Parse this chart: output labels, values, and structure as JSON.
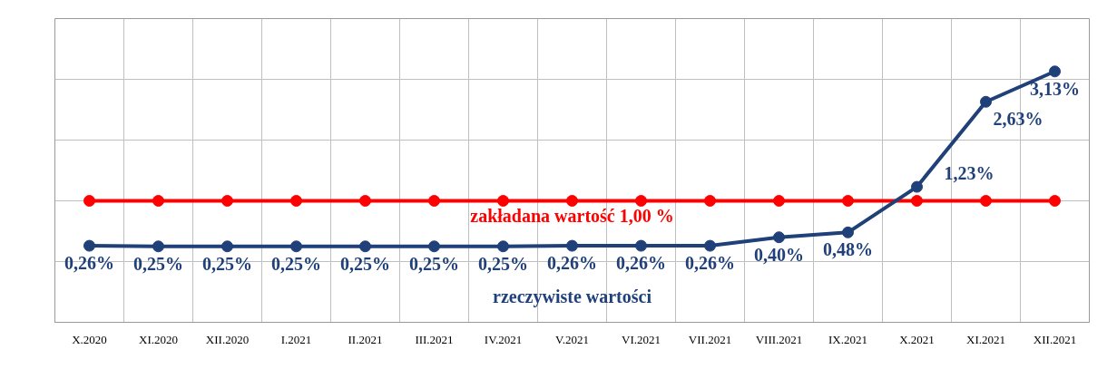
{
  "chart_data": {
    "type": "line",
    "categories": [
      "X.2020",
      "XI.2020",
      "XII.2020",
      "I.2021",
      "II.2021",
      "III.2021",
      "IV.2021",
      "V.2021",
      "VI.2021",
      "VII.2021",
      "VIII.2021",
      "IX.2021",
      "X.2021",
      "XI.2021",
      "XII.2021"
    ],
    "series": [
      {
        "name": "zakładana wartość 1,00 %",
        "color": "#ff0000",
        "values": [
          1.0,
          1.0,
          1.0,
          1.0,
          1.0,
          1.0,
          1.0,
          1.0,
          1.0,
          1.0,
          1.0,
          1.0,
          1.0,
          1.0,
          1.0
        ]
      },
      {
        "name": "rzeczywiste wartości",
        "color": "#1f4079",
        "values": [
          0.26,
          0.25,
          0.25,
          0.25,
          0.25,
          0.25,
          0.25,
          0.26,
          0.26,
          0.26,
          0.4,
          0.48,
          1.23,
          2.63,
          3.13
        ],
        "value_labels": [
          "0,26%",
          "0,25%",
          "0,25%",
          "0,25%",
          "0,25%",
          "0,25%",
          "0,25%",
          "0,26%",
          "0,26%",
          "0,26%",
          "0,40%",
          "0,48%",
          "1,23%",
          "2,63%",
          "3,13%"
        ]
      }
    ],
    "ylim": [
      -1,
      4
    ],
    "yticks": [
      {
        "value": -1,
        "label": null
      },
      {
        "value": 0,
        "label": null
      },
      {
        "value": 1,
        "label": null
      },
      {
        "value": 2,
        "label": null
      },
      {
        "value": 3,
        "label": null
      },
      {
        "value": 4,
        "label": null
      }
    ],
    "grid": true,
    "tick_labels": "x",
    "marker": "circle",
    "line_style": "solid"
  }
}
